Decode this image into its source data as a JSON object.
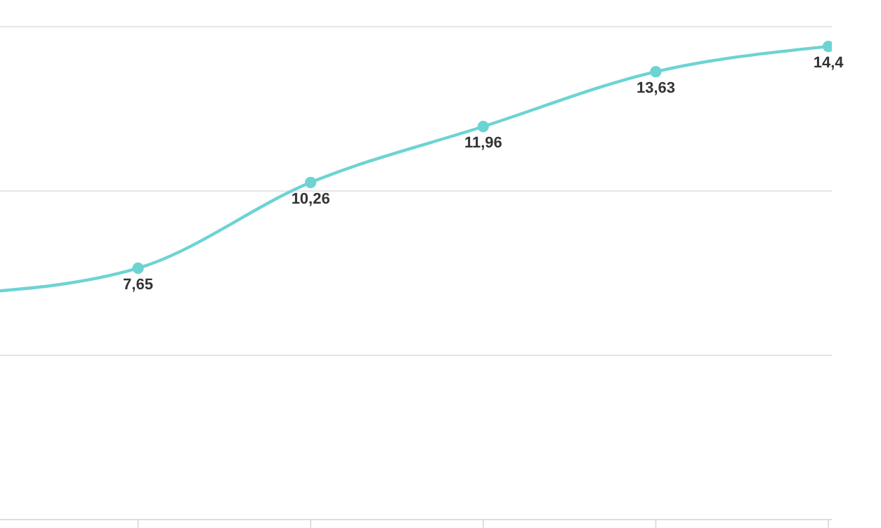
{
  "chart_data": {
    "type": "line",
    "categories": [
      null,
      null,
      null,
      null,
      null,
      null
    ],
    "series": [
      {
        "color": "#6dd3d3",
        "values": [
          6.88,
          7.65,
          10.26,
          11.96,
          13.63,
          14.4
        ],
        "value_labels": [
          null,
          "7,65",
          "10,26",
          "11,96",
          "13,63",
          "14,4"
        ]
      }
    ],
    "ylim": [
      0,
      15
    ],
    "yticks": [
      {
        "value": 0,
        "label": null
      },
      {
        "value": 5,
        "label": null
      },
      {
        "value": 10,
        "label": null
      },
      {
        "value": 15,
        "label": null
      }
    ],
    "grid": "y",
    "tick_labels": false,
    "marker": "circle",
    "legend": false
  }
}
